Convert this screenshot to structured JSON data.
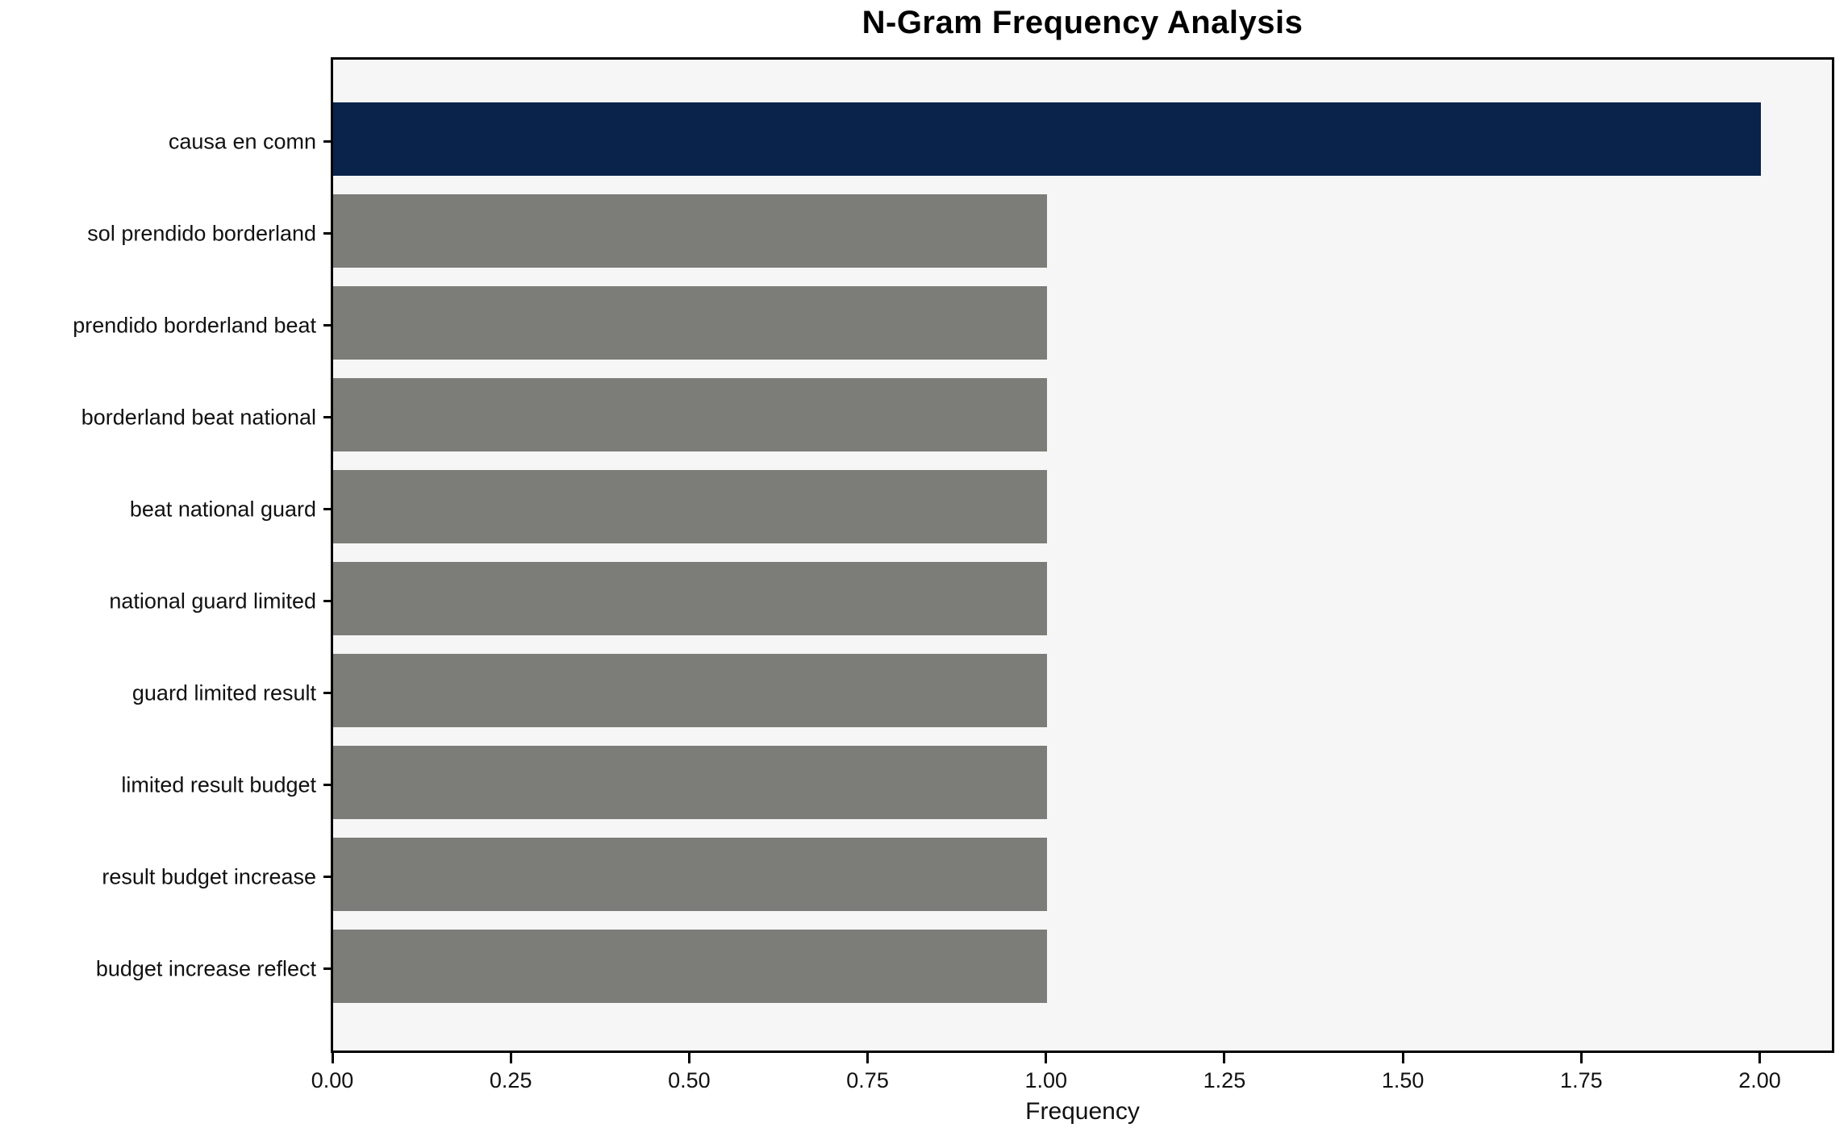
{
  "chart_data": {
    "type": "bar",
    "orientation": "horizontal",
    "title": "N-Gram Frequency Analysis",
    "xlabel": "Frequency",
    "ylabel": "",
    "categories": [
      "causa en comn",
      "sol prendido borderland",
      "prendido borderland beat",
      "borderland beat national",
      "beat national guard",
      "national guard limited",
      "guard limited result",
      "limited result budget",
      "result budget increase",
      "budget increase reflect"
    ],
    "values": [
      2,
      1,
      1,
      1,
      1,
      1,
      1,
      1,
      1,
      1
    ],
    "bar_colors": [
      "#09234b",
      "#7c7c78",
      "#7c7c78",
      "#7c7c78",
      "#7c7c78",
      "#7c7c78",
      "#7c7c78",
      "#7c7c78",
      "#7c7c78",
      "#7c7c78"
    ],
    "xlim": [
      0,
      2.1
    ],
    "x_ticks": [
      "0.00",
      "0.25",
      "0.50",
      "0.75",
      "1.00",
      "1.25",
      "1.50",
      "1.75",
      "2.00"
    ],
    "x_tick_values": [
      0.0,
      0.25,
      0.5,
      0.75,
      1.0,
      1.25,
      1.5,
      1.75,
      2.0
    ],
    "grid": false,
    "legend_position": "none",
    "colors": {
      "highlight_bar": "#09234b",
      "default_bar": "#7c7c78",
      "plot_background": "#f6f6f6",
      "figure_background": "#ffffff",
      "axis": "#000000"
    }
  }
}
